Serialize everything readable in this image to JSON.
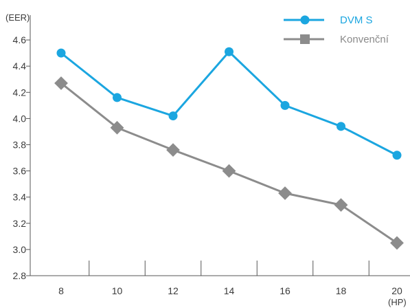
{
  "chart_data": {
    "type": "line",
    "ylabel": "(EER)",
    "xlabel": "(HP)",
    "x": [
      8,
      10,
      12,
      14,
      16,
      18,
      20
    ],
    "ylim": [
      2.8,
      4.7
    ],
    "yticks": [
      2.8,
      3.0,
      3.2,
      3.4,
      3.6,
      3.8,
      4.0,
      4.2,
      4.4,
      4.6
    ],
    "ytick_labels": [
      "2.8",
      "3.0",
      "3.2",
      "3.4",
      "3.6",
      "3.8",
      "4.0",
      "4.2",
      "4.4",
      "4.6"
    ],
    "xtick_labels": [
      "8",
      "10",
      "12",
      "14",
      "16",
      "18",
      "20"
    ],
    "grid": false,
    "legend_position": "top-right",
    "series": [
      {
        "name": "DVM S",
        "color": "#1ba6e0",
        "marker": "circle",
        "values": [
          4.5,
          4.16,
          4.02,
          4.51,
          4.1,
          3.94,
          3.72
        ]
      },
      {
        "name": "Konvenční",
        "color": "#8c8c8c",
        "marker": "square",
        "values": [
          4.27,
          3.93,
          3.76,
          3.6,
          3.43,
          3.34,
          3.05
        ]
      }
    ]
  }
}
